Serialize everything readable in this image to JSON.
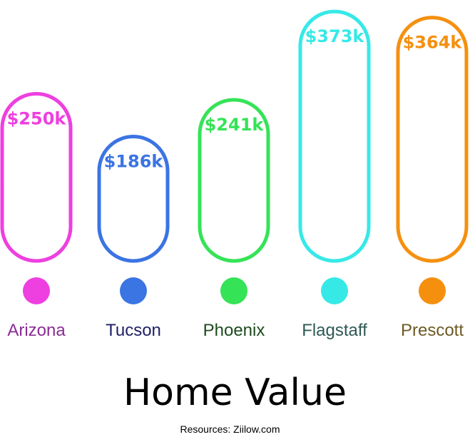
{
  "chart_data": {
    "type": "bar",
    "title": "Home Value",
    "categories": [
      "Arizona",
      "Tucson",
      "Phoenix",
      "Flagstaff",
      "Prescott"
    ],
    "values": [
      250,
      186,
      241,
      373,
      364
    ],
    "value_labels": [
      "$250k",
      "$186k",
      "$241k",
      "$373k",
      "$364k"
    ],
    "bar_colors": [
      "#ee3fe0",
      "#3b74e3",
      "#35e357",
      "#36e9e7",
      "#f5900f"
    ],
    "category_label_colors": [
      "#8a2d95",
      "#1f1f66",
      "#1d4a1d",
      "#2f5a55",
      "#6e5a23"
    ],
    "xlabel": "",
    "ylabel": "",
    "grid": false,
    "legend": "none"
  },
  "footer": {
    "source": "Resources: Ziilow.com"
  }
}
